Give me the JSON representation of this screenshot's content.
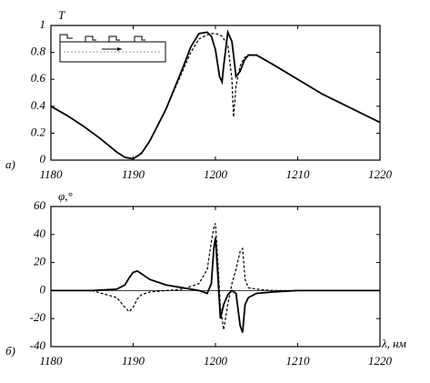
{
  "chart_data": [
    {
      "type": "line",
      "panel_label": "а)",
      "ylabel": "T",
      "xlim": [
        1180,
        1220
      ],
      "xticks": [
        1180,
        1190,
        1200,
        1210,
        1220
      ],
      "ylim": [
        0,
        1
      ],
      "yticks": [
        0,
        0.2,
        0.4,
        0.6,
        0.8,
        1
      ],
      "x": [
        1180,
        1182,
        1184,
        1186,
        1188,
        1189,
        1190,
        1191,
        1192,
        1194,
        1196,
        1197,
        1198,
        1199,
        1199.5,
        1200,
        1200.5,
        1200.8,
        1201,
        1201.5,
        1202,
        1202.2,
        1202.5,
        1203,
        1203.5,
        1204,
        1205,
        1207,
        1210,
        1213,
        1216,
        1220
      ],
      "series": [
        {
          "color": "#000000",
          "dashed": false,
          "values": [
            0.4,
            0.33,
            0.25,
            0.16,
            0.06,
            0.02,
            0.01,
            0.05,
            0.14,
            0.38,
            0.68,
            0.84,
            0.94,
            0.95,
            0.92,
            0.82,
            0.62,
            0.58,
            0.7,
            0.95,
            0.88,
            0.78,
            0.62,
            0.66,
            0.74,
            0.78,
            0.78,
            0.71,
            0.6,
            0.49,
            0.4,
            0.28
          ]
        },
        {
          "color": "#000000",
          "dashed": true,
          "values": [
            0.4,
            0.33,
            0.25,
            0.16,
            0.06,
            0.02,
            0.01,
            0.05,
            0.14,
            0.38,
            0.66,
            0.8,
            0.9,
            0.93,
            0.94,
            0.94,
            0.93,
            0.92,
            0.9,
            0.86,
            0.6,
            0.32,
            0.55,
            0.7,
            0.76,
            0.78,
            0.78,
            0.71,
            0.6,
            0.49,
            0.4,
            0.28
          ]
        }
      ]
    },
    {
      "type": "line",
      "panel_label": "б)",
      "ylabel": "φ,°",
      "xlabel": "λ, нм",
      "xlim": [
        1180,
        1220
      ],
      "xticks": [
        1180,
        1190,
        1200,
        1210,
        1220
      ],
      "ylim": [
        -40,
        60
      ],
      "yticks": [
        -40,
        -20,
        0,
        20,
        40,
        60
      ],
      "zero_line": true,
      "x": [
        1180,
        1185,
        1188,
        1189,
        1189.5,
        1190,
        1190.5,
        1191,
        1192,
        1194,
        1196,
        1198,
        1199,
        1199.5,
        1199.8,
        1200,
        1200.3,
        1200.6,
        1201,
        1201.5,
        1202,
        1202.5,
        1203,
        1203.3,
        1203.6,
        1204,
        1205,
        1207,
        1210,
        1215,
        1220
      ],
      "series": [
        {
          "color": "#000000",
          "dashed": false,
          "values": [
            0,
            0,
            1,
            4,
            9,
            13,
            14,
            12,
            8,
            4,
            2,
            0,
            -2,
            5,
            30,
            38,
            10,
            -20,
            -10,
            -3,
            0,
            -2,
            -25,
            -30,
            -10,
            -5,
            -2,
            -1,
            0,
            0,
            0
          ]
        },
        {
          "color": "#000000",
          "dashed": true,
          "values": [
            0,
            0,
            -5,
            -12,
            -15,
            -12,
            -6,
            -3,
            -1,
            0,
            1,
            5,
            15,
            35,
            45,
            48,
            20,
            -12,
            -28,
            -10,
            5,
            15,
            28,
            30,
            8,
            2,
            1,
            0,
            0,
            0,
            0
          ]
        }
      ]
    }
  ]
}
